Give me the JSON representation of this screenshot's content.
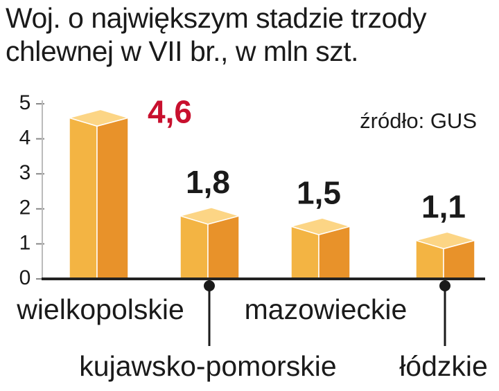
{
  "chart_data": {
    "type": "bar3d",
    "title": "Woj. o największym stadzie trzody chlewnej w VII br., w mln szt.",
    "source": "źródło: GUS",
    "categories": [
      "wielkopolskie",
      "kujawsko-pomorskie",
      "mazowieckie",
      "łódzkie"
    ],
    "values": [
      4.6,
      1.8,
      1.5,
      1.1
    ],
    "value_labels": [
      "4,6",
      "1,8",
      "1,5",
      "1,1"
    ],
    "value_label_colors": [
      "#c8102e",
      "#1a1a1a",
      "#1a1a1a",
      "#1a1a1a"
    ],
    "colors": {
      "front": "#f3b443",
      "side": "#e8922a",
      "top": "#fcd585"
    },
    "ylim": [
      0,
      5
    ],
    "yticks": [
      0,
      1,
      2,
      3,
      4,
      5
    ]
  }
}
